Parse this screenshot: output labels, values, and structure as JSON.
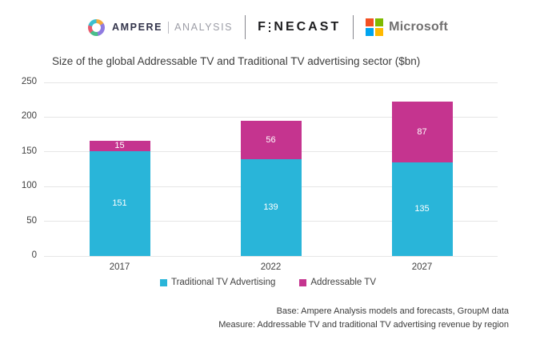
{
  "header": {
    "ampere": {
      "name": "AMPERE",
      "sub": "ANALYSIS"
    },
    "finecast": {
      "part1": "F",
      "part2": "NECAST"
    },
    "microsoft": {
      "label": "Microsoft"
    }
  },
  "title": "Size of the global Addressable TV and Traditional TV advertising sector ($bn)",
  "chart_data": {
    "type": "bar",
    "stacked": true,
    "title": "Size of the global Addressable TV and Traditional TV advertising sector ($bn)",
    "categories": [
      "2017",
      "2022",
      "2027"
    ],
    "series": [
      {
        "name": "Traditional TV Advertising",
        "color": "#29b5d9",
        "values": [
          151,
          139,
          135
        ]
      },
      {
        "name": "Addressable TV",
        "color": "#c5348f",
        "values": [
          15,
          56,
          87
        ]
      }
    ],
    "totals": [
      166,
      195,
      222
    ],
    "xlabel": "",
    "ylabel": "",
    "ylim": [
      0,
      250
    ],
    "yticks": [
      0,
      50,
      100,
      150,
      200,
      250
    ],
    "grid": true,
    "data_labels": true,
    "legend_position": "bottom"
  },
  "footer": {
    "line1": "Base: Ampere Analysis models and forecasts, GroupM data",
    "line2": "Measure: Addressable TV and traditional TV advertising revenue by region"
  },
  "colors": {
    "traditional_tv": "#29b5d9",
    "addressable_tv": "#c5348f",
    "gridline": "#e6e6e6",
    "microsoft_red": "#f25022",
    "microsoft_green": "#7fba00",
    "microsoft_blue": "#00a4ef",
    "microsoft_yellow": "#ffb900"
  }
}
